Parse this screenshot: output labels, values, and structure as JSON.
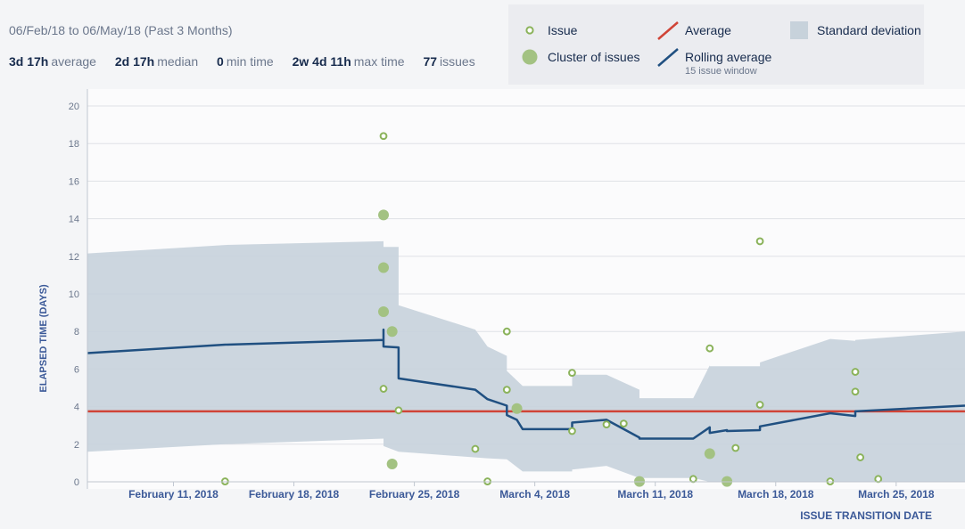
{
  "header": {
    "date_range": "06/Feb/18 to 06/May/18 (Past 3 Months)",
    "stats": [
      {
        "value": "3d 17h",
        "label": "average"
      },
      {
        "value": "2d 17h",
        "label": "median"
      },
      {
        "value": "0",
        "label": "min time"
      },
      {
        "value": "2w 4d 11h",
        "label": "max time"
      },
      {
        "value": "77",
        "label": "issues"
      }
    ]
  },
  "legend": {
    "issue": "Issue",
    "cluster": "Cluster of issues",
    "average": "Average",
    "rolling": "Rolling average",
    "rolling_sub": "15 issue window",
    "stddev": "Standard deviation"
  },
  "colors": {
    "issue": "#8bb35b",
    "cluster": "#a3c282",
    "average": "#d04437",
    "rolling": "#205081",
    "stddev": "#c7d2db",
    "axis_text": "#3b5998"
  },
  "chart_data": {
    "type": "scatter",
    "xlabel": "ISSUE TRANSITION DATE",
    "ylabel": "ELAPSED TIME (DAYS)",
    "x_start": "2018-02-06",
    "x_end": "2018-03-29",
    "ylim": [
      0,
      20
    ],
    "yticks": [
      0,
      2,
      4,
      6,
      8,
      10,
      12,
      14,
      16,
      18,
      20
    ],
    "xticks": [
      {
        "date": "2018-02-11",
        "label": "February 11, 2018"
      },
      {
        "date": "2018-02-18",
        "label": "February 18, 2018"
      },
      {
        "date": "2018-02-25",
        "label": "February 25, 2018"
      },
      {
        "date": "2018-03-04",
        "label": "March 4, 2018"
      },
      {
        "date": "2018-03-11",
        "label": "March 11, 2018"
      },
      {
        "date": "2018-03-18",
        "label": "March 18, 2018"
      },
      {
        "date": "2018-03-25",
        "label": "March 25, 2018"
      }
    ],
    "average": 3.75,
    "issues": [
      {
        "x": "2018-02-14 00:00",
        "y": 0.02
      },
      {
        "x": "2018-02-23 05:00",
        "y": 18.4
      },
      {
        "x": "2018-02-23 05:00",
        "y": 4.95
      },
      {
        "x": "2018-02-24 02:00",
        "y": 3.8
      },
      {
        "x": "2018-02-28 13:00",
        "y": 1.75
      },
      {
        "x": "2018-03-01 06:00",
        "y": 0.02
      },
      {
        "x": "2018-03-02 09:00",
        "y": 8.0
      },
      {
        "x": "2018-03-02 09:00",
        "y": 4.9
      },
      {
        "x": "2018-03-06 04:00",
        "y": 5.8
      },
      {
        "x": "2018-03-06 04:00",
        "y": 2.7
      },
      {
        "x": "2018-03-08 04:00",
        "y": 3.05
      },
      {
        "x": "2018-03-09 04:00",
        "y": 3.1
      },
      {
        "x": "2018-03-13 05:00",
        "y": 0.15
      },
      {
        "x": "2018-03-14 04:00",
        "y": 7.1
      },
      {
        "x": "2018-03-15 16:00",
        "y": 1.8
      },
      {
        "x": "2018-03-17 02:00",
        "y": 12.8
      },
      {
        "x": "2018-03-17 02:00",
        "y": 4.1
      },
      {
        "x": "2018-03-21 04:00",
        "y": 0.02
      },
      {
        "x": "2018-03-22 15:00",
        "y": 5.85
      },
      {
        "x": "2018-03-22 15:00",
        "y": 4.8
      },
      {
        "x": "2018-03-22 22:00",
        "y": 1.3
      },
      {
        "x": "2018-03-23 23:00",
        "y": 0.15
      }
    ],
    "clusters": [
      {
        "x": "2018-02-23 05:00",
        "y": 14.2
      },
      {
        "x": "2018-02-23 05:00",
        "y": 11.4
      },
      {
        "x": "2018-02-23 05:00",
        "y": 9.05
      },
      {
        "x": "2018-02-23 17:00",
        "y": 8.0
      },
      {
        "x": "2018-02-23 17:00",
        "y": 0.95
      },
      {
        "x": "2018-03-02 23:00",
        "y": 3.9
      },
      {
        "x": "2018-03-10 02:00",
        "y": 0.02
      },
      {
        "x": "2018-03-14 04:00",
        "y": 1.5
      },
      {
        "x": "2018-03-15 04:00",
        "y": 0.02
      }
    ],
    "rolling_average": [
      {
        "x": "2018-02-06 00:00",
        "y": 6.85
      },
      {
        "x": "2018-02-14 00:00",
        "y": 7.3
      },
      {
        "x": "2018-02-23 05:00",
        "y": 7.55
      },
      {
        "x": "2018-02-23 05:00",
        "y": 8.1
      },
      {
        "x": "2018-02-23 05:00",
        "y": 7.2
      },
      {
        "x": "2018-02-24 02:00",
        "y": 7.15
      },
      {
        "x": "2018-02-24 02:00",
        "y": 5.5
      },
      {
        "x": "2018-02-28 13:00",
        "y": 4.9
      },
      {
        "x": "2018-03-01 06:00",
        "y": 4.4
      },
      {
        "x": "2018-03-02 09:00",
        "y": 4.05
      },
      {
        "x": "2018-03-02 09:00",
        "y": 3.55
      },
      {
        "x": "2018-03-02 23:00",
        "y": 3.3
      },
      {
        "x": "2018-03-03 07:00",
        "y": 2.8
      },
      {
        "x": "2018-03-06 04:00",
        "y": 2.8
      },
      {
        "x": "2018-03-06 04:00",
        "y": 3.15
      },
      {
        "x": "2018-03-08 04:00",
        "y": 3.3
      },
      {
        "x": "2018-03-10 02:00",
        "y": 2.35
      },
      {
        "x": "2018-03-10 02:00",
        "y": 2.3
      },
      {
        "x": "2018-03-13 05:00",
        "y": 2.3
      },
      {
        "x": "2018-03-14 04:00",
        "y": 2.9
      },
      {
        "x": "2018-03-14 04:00",
        "y": 2.6
      },
      {
        "x": "2018-03-15 04:00",
        "y": 2.75
      },
      {
        "x": "2018-03-15 04:00",
        "y": 2.7
      },
      {
        "x": "2018-03-17 02:00",
        "y": 2.75
      },
      {
        "x": "2018-03-17 02:00",
        "y": 2.95
      },
      {
        "x": "2018-03-21 04:00",
        "y": 3.65
      },
      {
        "x": "2018-03-22 15:00",
        "y": 3.5
      },
      {
        "x": "2018-03-22 15:00",
        "y": 3.75
      },
      {
        "x": "2018-03-29 00:00",
        "y": 4.05
      }
    ],
    "stddev_band": [
      {
        "x": "2018-02-06 00:00",
        "upper": 12.15,
        "lower": 1.6
      },
      {
        "x": "2018-02-14 00:00",
        "upper": 12.6,
        "lower": 2.0
      },
      {
        "x": "2018-02-23 05:00",
        "upper": 12.8,
        "lower": 2.3
      },
      {
        "x": "2018-02-23 05:00",
        "upper": 12.5,
        "lower": 1.9
      },
      {
        "x": "2018-02-24 02:00",
        "upper": 12.5,
        "lower": 1.6
      },
      {
        "x": "2018-02-24 02:00",
        "upper": 9.4,
        "lower": 1.6
      },
      {
        "x": "2018-02-28 13:00",
        "upper": 8.1,
        "lower": 1.3
      },
      {
        "x": "2018-03-01 06:00",
        "upper": 7.2,
        "lower": 1.25
      },
      {
        "x": "2018-03-02 09:00",
        "upper": 6.7,
        "lower": 1.2
      },
      {
        "x": "2018-03-02 09:00",
        "upper": 5.9,
        "lower": 1.2
      },
      {
        "x": "2018-03-03 07:00",
        "upper": 5.1,
        "lower": 0.55
      },
      {
        "x": "2018-03-06 04:00",
        "upper": 5.1,
        "lower": 0.55
      },
      {
        "x": "2018-03-06 04:00",
        "upper": 5.7,
        "lower": 0.65
      },
      {
        "x": "2018-03-08 04:00",
        "upper": 5.7,
        "lower": 0.85
      },
      {
        "x": "2018-03-10 02:00",
        "upper": 4.9,
        "lower": 0.2
      },
      {
        "x": "2018-03-10 02:00",
        "upper": 4.45,
        "lower": 0.2
      },
      {
        "x": "2018-03-13 05:00",
        "upper": 4.45,
        "lower": 0.2
      },
      {
        "x": "2018-03-14 04:00",
        "upper": 6.2,
        "lower": 0.0
      },
      {
        "x": "2018-03-14 04:00",
        "upper": 6.15,
        "lower": 0.0
      },
      {
        "x": "2018-03-17 02:00",
        "upper": 6.15,
        "lower": 0.0
      },
      {
        "x": "2018-03-17 02:00",
        "upper": 6.35,
        "lower": 0.0
      },
      {
        "x": "2018-03-21 04:00",
        "upper": 7.6,
        "lower": 0.0
      },
      {
        "x": "2018-03-22 15:00",
        "upper": 7.5,
        "lower": 0.0
      },
      {
        "x": "2018-03-22 15:00",
        "upper": 7.55,
        "lower": 0.0
      },
      {
        "x": "2018-03-29 00:00",
        "upper": 8.0,
        "lower": 0.0
      }
    ]
  }
}
